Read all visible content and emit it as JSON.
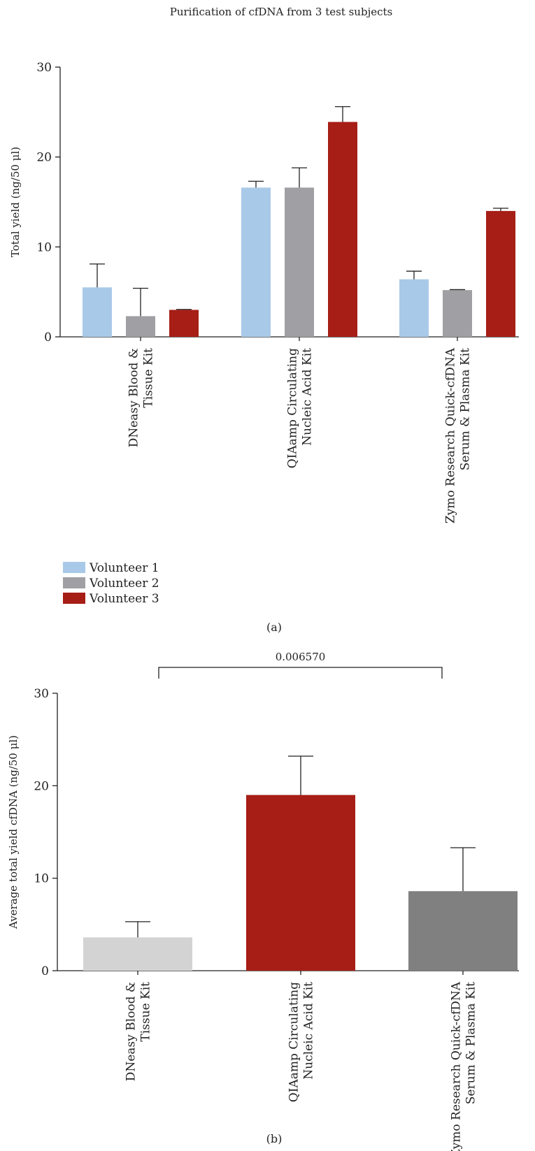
{
  "chart_data": [
    {
      "panel_label": "(a)",
      "type": "bar",
      "title": "Purification of cfDNA from 3 test subjects",
      "xlabel": "",
      "ylabel": "Total yield (ng/50 μl)",
      "ylim": [
        0,
        30
      ],
      "yticks": [
        "0",
        "10",
        "20",
        "30"
      ],
      "categories": [
        [
          "DNeasy Blood &",
          "Tissue Kit"
        ],
        [
          "QIAamp Circulating",
          "Nucleic Acid Kit"
        ],
        [
          "Zymo Research Quick-cfDNA",
          "Serum & Plasma Kit"
        ]
      ],
      "series": [
        {
          "name": "Volunteer 1",
          "color": "#a9c9e8",
          "values": [
            5.5,
            16.6,
            6.4
          ],
          "errors": [
            2.6,
            0.7,
            0.9
          ]
        },
        {
          "name": "Volunteer 2",
          "color": "#a0a0a4",
          "values": [
            2.3,
            16.6,
            5.2
          ],
          "errors": [
            3.1,
            2.2,
            0.05
          ]
        },
        {
          "name": "Volunteer 3",
          "color": "#a61e16",
          "values": [
            3.0,
            23.9,
            14.0
          ],
          "errors": [
            0.05,
            1.7,
            0.3
          ]
        }
      ],
      "legend_position": "bottom-left",
      "grid": false
    },
    {
      "panel_label": "(b)",
      "type": "bar",
      "title": "",
      "xlabel": "",
      "ylabel": "Average total yield cfDNA (ng/50 μl)",
      "ylim": [
        0,
        30
      ],
      "yticks": [
        "0",
        "10",
        "20",
        "30"
      ],
      "categories": [
        [
          "DNeasy Blood &",
          "Tissue Kit"
        ],
        [
          "QIAamp Circulating",
          "Nucleic Acid Kit"
        ],
        [
          "Zymo Research Quick-cfDNA",
          "Serum & Plasma Kit"
        ]
      ],
      "values": [
        3.6,
        19.0,
        8.6
      ],
      "errors": [
        1.7,
        4.2,
        4.7
      ],
      "colors": [
        "#d3d3d3",
        "#a61e16",
        "#808080"
      ],
      "significance": {
        "from": 0,
        "to": 2,
        "label": "0.006570"
      },
      "grid": false
    }
  ]
}
